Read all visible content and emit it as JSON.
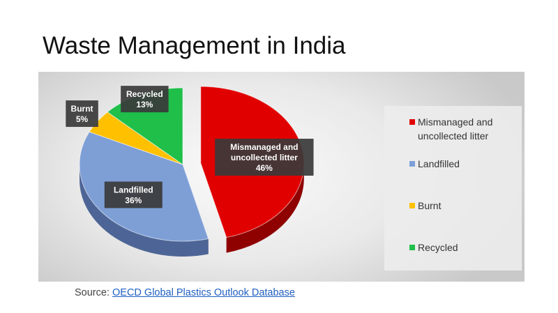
{
  "page": {
    "title": "Waste Management in India",
    "source_prefix": "Source: ",
    "source_link": "OECD Global Plastics Outlook Database"
  },
  "chart_data": {
    "type": "pie",
    "title": "",
    "style": "3d-tilted",
    "legend_placement": "right",
    "slices": [
      {
        "label": "Mismanaged and uncollected litter",
        "value": 46,
        "data_label": "46%",
        "color": "#e00000",
        "side_color": "#8f0000",
        "exploded": true
      },
      {
        "label": "Landfilled",
        "value": 36,
        "data_label": "36%",
        "color": "#7e9fd6",
        "side_color": "#4d6596",
        "exploded": false
      },
      {
        "label": "Burnt",
        "value": 5,
        "data_label": "5%",
        "color": "#ffc000",
        "side_color": "#b38600",
        "exploded": false
      },
      {
        "label": "Recycled",
        "value": 13,
        "data_label": "13%",
        "color": "#1fbf4a",
        "side_color": "#137a2e",
        "exploded": false
      }
    ]
  }
}
